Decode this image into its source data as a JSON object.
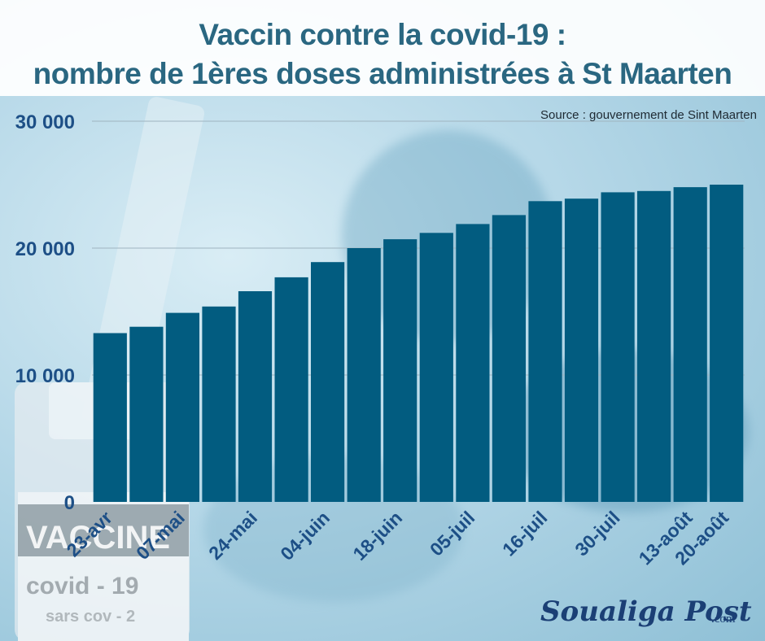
{
  "title_line1": "Vaccin contre la covid-19 :",
  "title_line2": "nombre de 1ères doses administrées à St Maarten",
  "source": "Source : gouvernement de Sint Maarten",
  "brand": {
    "name": "Soualiga Post",
    "domain": ".com"
  },
  "background_image_text": {
    "line1": "VACCINE",
    "line2": "covid - 19",
    "line3": "sars cov - 2"
  },
  "colors": {
    "bar": "#025c80",
    "title": "#2a6781",
    "axis_label": "#1d4f86",
    "brand": "#1b3f75"
  },
  "chart_data": {
    "type": "bar",
    "title": "Vaccin contre la covid-19 : nombre de 1ères doses administrées à St Maarten",
    "xlabel": "",
    "ylabel": "",
    "ylim": [
      0,
      30000
    ],
    "yticks": [
      0,
      10000,
      20000,
      30000
    ],
    "ytick_labels": [
      "0",
      "10 000",
      "20 000",
      "30 000"
    ],
    "grid": "horizontal",
    "x_tick_labels": [
      "23-avr",
      "07-mai",
      "24-mai",
      "04-juin",
      "18-juin",
      "05-juil",
      "16-juil",
      "30-juil",
      "13-août",
      "20-août"
    ],
    "x_tick_bar_index": [
      0,
      2,
      4,
      6,
      8,
      10,
      12,
      14,
      16,
      17
    ],
    "values": [
      13300,
      13800,
      14900,
      15400,
      16600,
      17700,
      18900,
      20000,
      20700,
      21200,
      21900,
      22600,
      23700,
      23900,
      24400,
      24500,
      24800,
      25000
    ]
  }
}
